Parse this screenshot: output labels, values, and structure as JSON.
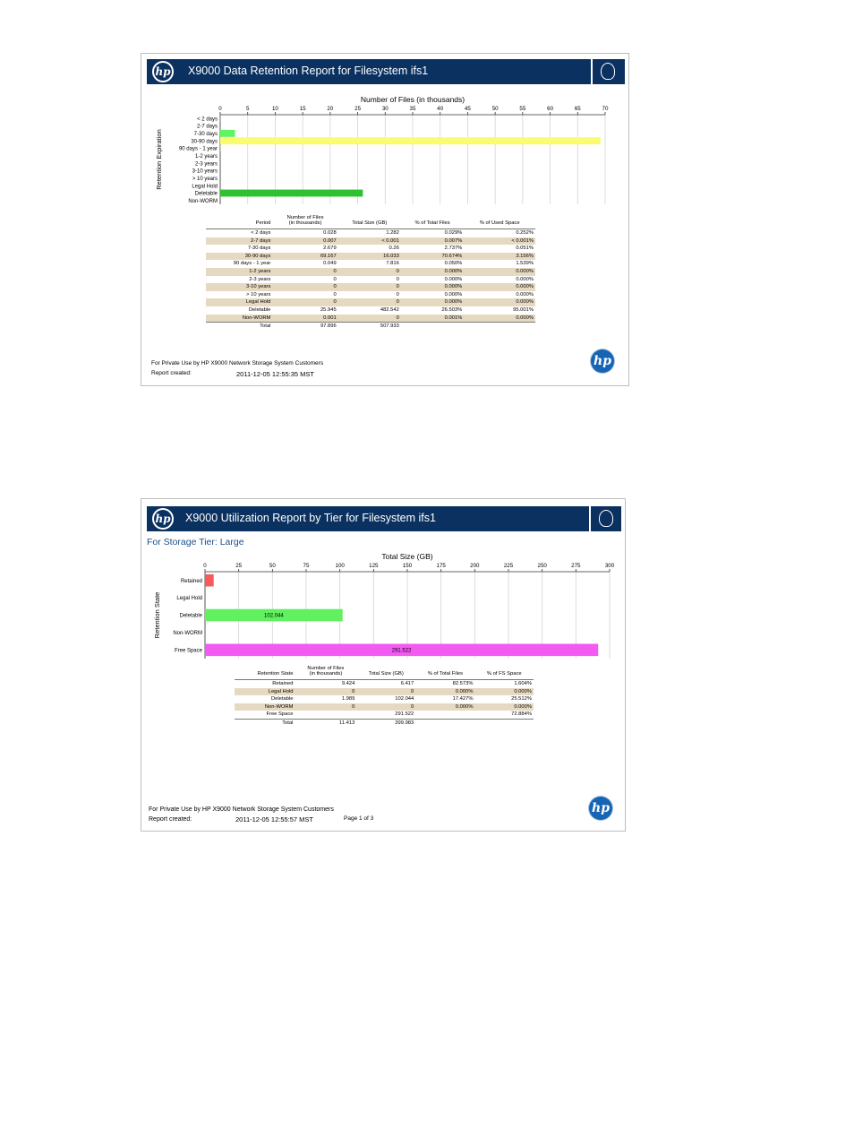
{
  "report1": {
    "title": "X9000 Data Retention Report for Filesystem ifs1",
    "footer_private": "For Private Use by HP X9000 Network Storage System Customers",
    "report_created_label": "Report created:",
    "report_created_value": "2011-12-05  12:55:35 MST",
    "logo_text": "hp",
    "icons": [
      "hp-logo-icon",
      "brain-head-icon"
    ],
    "table": {
      "headers": [
        "Period",
        "Number of Files\n(in thousands)",
        "Total Size (GB)",
        "% of Total Files",
        "% of Used Space"
      ],
      "rows": [
        [
          "< 2 days",
          "0.028",
          "1.282",
          "0.029%",
          "0.252%"
        ],
        [
          "2-7  days",
          "0.007",
          "< 0.001",
          "0.007%",
          "< 0.001%"
        ],
        [
          "7-30 days",
          "2.679",
          "0.26",
          "2.737%",
          "0.051%"
        ],
        [
          "30-90 days",
          "69.167",
          "16.033",
          "70.674%",
          "3.156%"
        ],
        [
          "90 days - 1 year",
          "0.049",
          "7.816",
          "0.050%",
          "1.539%"
        ],
        [
          "1-2 years",
          "0",
          "0",
          "0.000%",
          "0.000%"
        ],
        [
          "2-3 years",
          "0",
          "0",
          "0.000%",
          "0.000%"
        ],
        [
          "3-10 years",
          "0",
          "0",
          "0.000%",
          "0.000%"
        ],
        [
          "> 10 years",
          "0",
          "0",
          "0.000%",
          "0.000%"
        ],
        [
          "Legal Hold",
          "0",
          "0",
          "0.000%",
          "0.000%"
        ],
        [
          "Deletable",
          "25.945",
          "482.542",
          "26.503%",
          "95.001%"
        ],
        [
          "Non-WORM",
          "0.001",
          "0",
          "0.001%",
          "0.000%"
        ]
      ],
      "total": [
        "Total",
        "97.896",
        "507.933",
        "",
        ""
      ]
    }
  },
  "report2": {
    "title": "X9000 Utilization Report by Tier for Filesystem ifs1",
    "tier_title": "For Storage Tier: Large",
    "footer_private": "For Private Use by HP X9000 Network Storage System Customers",
    "report_created_label": "Report created:",
    "report_created_value": "2011-12-05  12:55:57 MST",
    "page_label": "Page 1 of 3",
    "logo_text": "hp",
    "table": {
      "headers": [
        "Retention State",
        "Number of Files\n(in thousands)",
        "Total Size (GB)",
        "% of Total Files",
        "% of FS Space"
      ],
      "rows": [
        [
          "Retained",
          "9.424",
          "6.417",
          "82.573%",
          "1.604%"
        ],
        [
          "Legal Hold",
          "0",
          "0",
          "0.000%",
          "0.000%"
        ],
        [
          "Deletable",
          "1.989",
          "102.044",
          "17.427%",
          "25.512%"
        ],
        [
          "Non-WORM",
          "0",
          "0",
          "0.000%",
          "0.000%"
        ],
        [
          "Free Space",
          "",
          "291.522",
          "",
          "72.884%"
        ]
      ],
      "total": [
        "Total",
        "11.413",
        "399.983",
        "",
        ""
      ]
    }
  },
  "chart_data": [
    {
      "type": "bar",
      "orientation": "horizontal",
      "title": "",
      "xlabel": "Number of Files (in thousands)",
      "ylabel": "Retention Expiration",
      "xlim": [
        0,
        70
      ],
      "xticks": [
        0,
        5,
        10,
        15,
        20,
        25,
        30,
        35,
        40,
        45,
        50,
        55,
        60,
        65,
        70
      ],
      "categories": [
        "< 2 days",
        "2-7 days",
        "7-30 days",
        "30-90 days",
        "90 days - 1 year",
        "1-2 years",
        "2-3 years",
        "3-10 years",
        "> 10 years",
        "Legal Hold",
        "Deletable",
        "Non-WORM"
      ],
      "values": [
        0.028,
        0.007,
        2.679,
        69.167,
        0.049,
        0,
        0,
        0,
        0,
        0,
        25.945,
        0.001
      ],
      "colors": [
        "#7de07d",
        "#7de07d",
        "#5ef55e",
        "#fbfb70",
        "#7de07d",
        "#7de07d",
        "#7de07d",
        "#7de07d",
        "#7de07d",
        "#7de07d",
        "#2fc12f",
        "#7de07d"
      ],
      "grid": true,
      "legend": "none"
    },
    {
      "type": "bar",
      "orientation": "horizontal",
      "title": "",
      "xlabel": "Total Size (GB)",
      "ylabel": "Retention State",
      "xlim": [
        0,
        300
      ],
      "xticks": [
        0,
        25,
        50,
        75,
        100,
        125,
        150,
        175,
        200,
        225,
        250,
        275,
        300
      ],
      "categories": [
        "Retained",
        "Legal Hold",
        "Deletable",
        "Non-WORM",
        "Free Space"
      ],
      "values": [
        6.417,
        0,
        102.044,
        0,
        291.522
      ],
      "data_labels": [
        "",
        "",
        "102.044",
        "",
        "291.522"
      ],
      "colors": [
        "#f65a5a",
        "#f65a5a",
        "#60f060",
        "#60f060",
        "#f25af2"
      ],
      "grid": true,
      "legend": "none"
    }
  ]
}
